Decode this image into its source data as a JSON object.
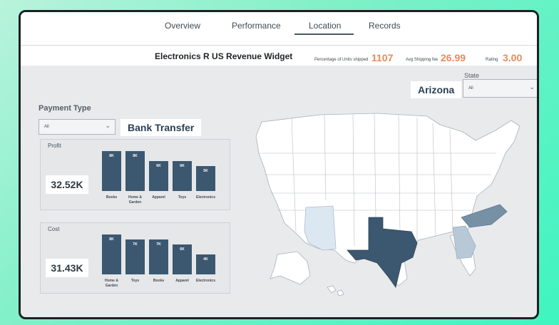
{
  "nav": {
    "tabs": [
      {
        "label": "Overview",
        "active": false
      },
      {
        "label": "Performance",
        "active": false
      },
      {
        "label": "Location",
        "active": true
      },
      {
        "label": "Records",
        "active": false
      }
    ]
  },
  "header": {
    "title": "Electronics R US Revenue Widget",
    "kpis": [
      {
        "label": "Percentage of Units shipped",
        "value": "1107"
      },
      {
        "label": "Avg Shipping fee",
        "value": "26.99"
      },
      {
        "label": "Rating",
        "value": "3.00"
      }
    ]
  },
  "filters": {
    "state_label": "State",
    "state_selected": "Arizona",
    "state_dropdown_value": "All",
    "payment_label": "Payment Type",
    "payment_dropdown_value": "All",
    "payment_selected": "Bank Transfer"
  },
  "chart_data": [
    {
      "type": "bar",
      "title": "Profit",
      "total": "32.52K",
      "categories": [
        "Books",
        "Home & Garden",
        "Apparel",
        "Toys",
        "Electronics"
      ],
      "values": [
        8,
        8,
        6,
        6,
        5
      ],
      "labels": [
        "8K",
        "8K",
        "6K",
        "6K",
        "5K"
      ],
      "ylim": [
        0,
        8
      ]
    },
    {
      "type": "bar",
      "title": "Cost",
      "total": "31.43K",
      "categories": [
        "Home & Garden",
        "Toys",
        "Books",
        "Apparel",
        "Electronics"
      ],
      "values": [
        8,
        7,
        7,
        6,
        4
      ],
      "labels": [
        "8K",
        "7K",
        "7K",
        "6K",
        "4K"
      ],
      "ylim": [
        0,
        8
      ]
    }
  ],
  "map": {
    "highlighted_states": [
      {
        "state": "Texas",
        "color": "#3b5870"
      },
      {
        "state": "North Carolina",
        "color": "#7690a6"
      },
      {
        "state": "Georgia",
        "color": "#b7c8d6"
      },
      {
        "state": "Arizona",
        "color": "#dbe8f2"
      }
    ]
  },
  "colors": {
    "bar": "#3b5870",
    "kpi": "#e58b5a",
    "frame": "#1c2124"
  }
}
